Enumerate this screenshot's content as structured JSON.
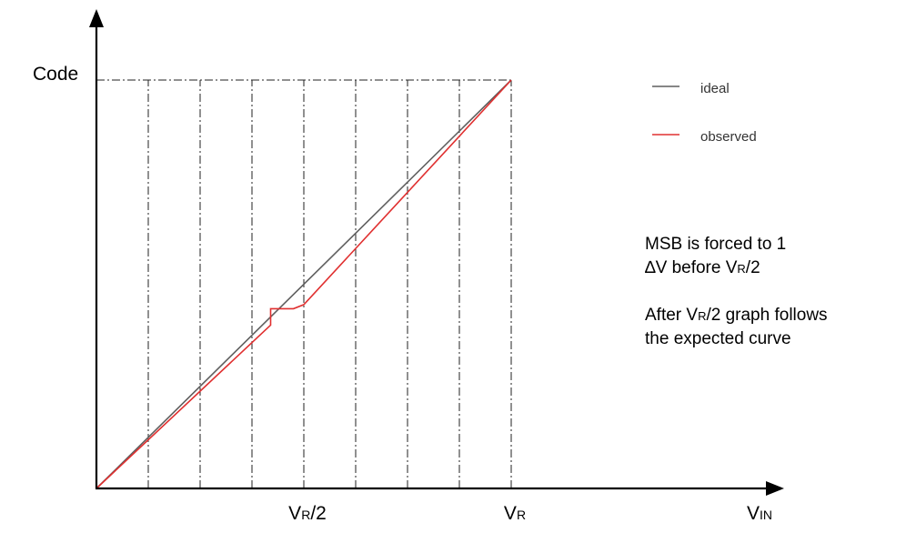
{
  "chart_data": {
    "type": "line",
    "y_axis_label": "Code",
    "x_axis_label": {
      "main": "V",
      "sub": "IN"
    },
    "x_ticks": [
      {
        "main": "V",
        "sub": "R",
        "suffix": "/2",
        "x": 0.5
      },
      {
        "main": "V",
        "sub": "R",
        "suffix": "",
        "x": 1.0
      }
    ],
    "xlim": [
      0,
      1
    ],
    "ylim": [
      0,
      1
    ],
    "vertical_gridlines_x": [
      0.125,
      0.25,
      0.375,
      0.5,
      0.625,
      0.75,
      0.875,
      1.0
    ],
    "horizontal_gridlines_y": [
      1.0
    ],
    "gridline_style": "dash-dot",
    "series": [
      {
        "name": "ideal",
        "color": "#5f5f5f",
        "points": [
          [
            0,
            0
          ],
          [
            1.0,
            1.0
          ]
        ]
      },
      {
        "name": "observed",
        "color": "#e03030",
        "points": [
          [
            0,
            0
          ],
          [
            0.42,
            0.4
          ],
          [
            0.42,
            0.44
          ],
          [
            0.475,
            0.44
          ],
          [
            0.5,
            0.45
          ],
          [
            1.0,
            1.0
          ]
        ]
      }
    ],
    "legend": {
      "position": "top-right",
      "entries": [
        {
          "label": "ideal",
          "color": "#5f5f5f"
        },
        {
          "label": "observed",
          "color": "#e03030"
        }
      ]
    },
    "annotations": [
      {
        "lines": [
          [
            {
              "t": "MSB is forced to 1"
            }
          ],
          [
            {
              "t": "∆V before V"
            },
            {
              "t": "R",
              "sub": true
            },
            {
              "t": "/2"
            }
          ],
          [
            {
              "t": ""
            }
          ],
          [
            {
              "t": "After V"
            },
            {
              "t": "R",
              "sub": true
            },
            {
              "t": "/2 graph follows"
            }
          ],
          [
            {
              "t": "the expected curve"
            }
          ]
        ]
      }
    ]
  }
}
